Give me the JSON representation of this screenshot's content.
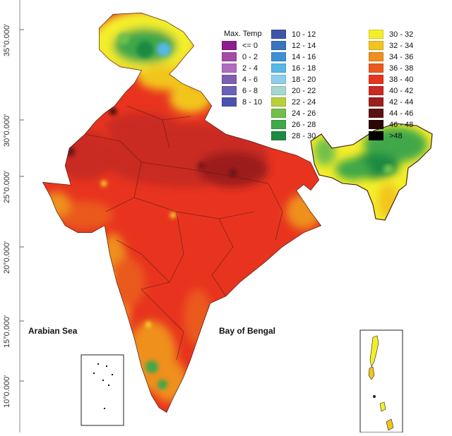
{
  "map": {
    "latitude_labels": [
      "35°0.000'",
      "30°0.000'",
      "25°0.000'",
      "20°0.000'",
      "15°0.000'",
      "10°0.000'"
    ],
    "seas": [
      "Arabian Sea",
      "Bay of Bengal"
    ]
  },
  "legend": {
    "title": "Max. Temp",
    "items": [
      {
        "label": "<= 0",
        "color": "#8e1c8e"
      },
      {
        "label": "0 - 2",
        "color": "#a54aa6"
      },
      {
        "label": "2 - 4",
        "color": "#b06cc0"
      },
      {
        "label": "4 - 6",
        "color": "#7d5fb2"
      },
      {
        "label": "6 - 8",
        "color": "#6a62b6"
      },
      {
        "label": "8 - 10",
        "color": "#4a54ad"
      },
      {
        "label": "10 - 12",
        "color": "#3f55a8"
      },
      {
        "label": "12 - 14",
        "color": "#3a74bf"
      },
      {
        "label": "14 - 16",
        "color": "#3f8fd8"
      },
      {
        "label": "16 - 18",
        "color": "#56b8e6"
      },
      {
        "label": "18 - 20",
        "color": "#8ed0ec"
      },
      {
        "label": "20 - 22",
        "color": "#a6d7d1"
      },
      {
        "label": "22 - 24",
        "color": "#b8cf3a"
      },
      {
        "label": "24 - 26",
        "color": "#70c04c"
      },
      {
        "label": "26 - 28",
        "color": "#3fa84a"
      },
      {
        "label": "28 - 30",
        "color": "#1e8a43"
      },
      {
        "label": "30 - 32",
        "color": "#f4ee2a"
      },
      {
        "label": "32 - 34",
        "color": "#f2c51e"
      },
      {
        "label": "34 - 36",
        "color": "#ef8f1e"
      },
      {
        "label": "36 - 38",
        "color": "#ea5a1d"
      },
      {
        "label": "38 - 40",
        "color": "#e8341f"
      },
      {
        "label": "40 - 42",
        "color": "#c92a22"
      },
      {
        "label": "42 - 44",
        "color": "#9c1f1d"
      },
      {
        "label": "44 - 46",
        "color": "#5c1212"
      },
      {
        "label": "46 - 48",
        "color": "#2b0707"
      },
      {
        "label": ">48",
        "color": "#000000"
      }
    ]
  }
}
